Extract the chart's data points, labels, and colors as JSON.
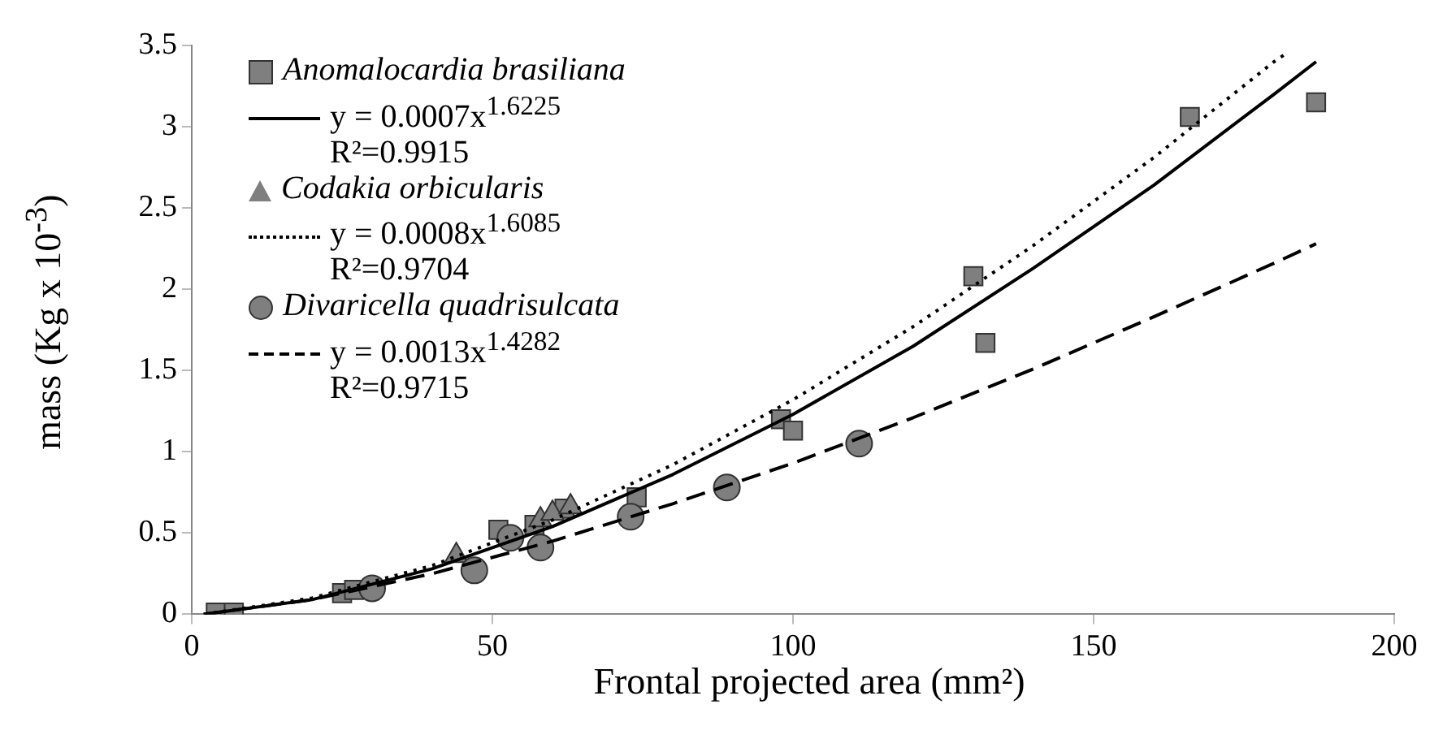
{
  "chart_data": {
    "type": "scatter",
    "xlabel": "Frontal projected area (mm²)",
    "ylabel": "mass (Kg x 10$^{-3}$)",
    "xlim": [
      0,
      200
    ],
    "xticks": [
      0,
      50,
      100,
      150,
      200
    ],
    "ylim": [
      0,
      3.5
    ],
    "yticks": [
      0,
      0.5,
      1,
      1.5,
      2,
      2.5,
      3,
      3.5
    ],
    "grid": false,
    "legend": "top left",
    "series": [
      {
        "name": "Anomalocardia brasiliana",
        "marker": "square",
        "color": "#7f7f7f",
        "x": [
          4,
          7,
          25,
          27,
          51,
          57,
          62,
          74,
          98,
          100,
          130,
          132,
          166,
          187
        ],
        "values": [
          0.01,
          0.01,
          0.13,
          0.15,
          0.52,
          0.55,
          0.65,
          0.72,
          1.2,
          1.13,
          2.08,
          1.67,
          3.06,
          3.15
        ]
      },
      {
        "name": "y = 0.0007x$^{1.6225}$",
        "type": "line",
        "marker": "none",
        "line_style": "solid",
        "color": "#000000",
        "x": [
          2,
          20,
          40,
          60,
          80,
          100,
          120,
          140,
          160,
          180,
          187
        ],
        "values": [
          0,
          0.09,
          0.28,
          0.54,
          0.86,
          1.23,
          1.65,
          2.13,
          2.64,
          3.2,
          3.4
        ]
      },
      {
        "name": "Codakia orbicularis",
        "marker": "triangle",
        "color": "#7f7f7f",
        "x": [
          44,
          58,
          60,
          63
        ],
        "values": [
          0.36,
          0.58,
          0.62,
          0.66
        ]
      },
      {
        "name": "y = 0.0008x$^{1.6085}$",
        "type": "line",
        "marker": "none",
        "line_style": "dotted",
        "color": "#000000",
        "x": [
          2,
          20,
          40,
          60,
          80,
          100,
          120,
          140,
          160,
          180,
          182
        ],
        "values": [
          0,
          0.1,
          0.3,
          0.58,
          0.92,
          1.32,
          1.77,
          2.27,
          2.81,
          3.4,
          3.45
        ]
      },
      {
        "name": "Divaricella quadrisulcata",
        "marker": "circle",
        "color": "#7f7f7f",
        "x": [
          30,
          47,
          53,
          58,
          73,
          89,
          111
        ],
        "values": [
          0.16,
          0.27,
          0.47,
          0.41,
          0.6,
          0.78,
          1.05
        ]
      },
      {
        "name": "y = 0.0013x$^{1.4282}$",
        "type": "line",
        "marker": "none",
        "line_style": "dashed",
        "color": "#000000",
        "x": [
          2,
          20,
          40,
          60,
          80,
          100,
          120,
          140,
          160,
          180,
          187
        ],
        "values": [
          0,
          0.09,
          0.25,
          0.45,
          0.68,
          0.93,
          1.21,
          1.51,
          1.83,
          2.16,
          2.28
        ]
      }
    ],
    "annotations": [
      "R²=0.9915",
      "R²=0.9704",
      "R²=0.9715"
    ]
  }
}
